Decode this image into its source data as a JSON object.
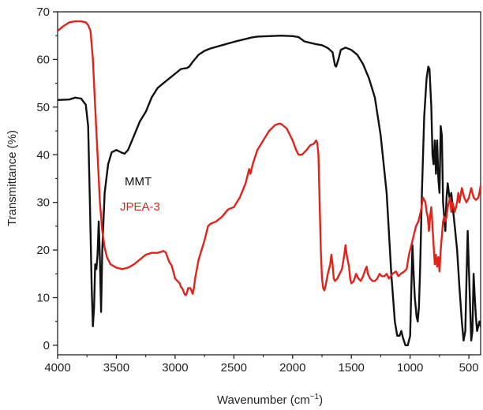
{
  "chart_data": {
    "type": "line",
    "xlabel": "Wavenumber (cm",
    "xlabel_sup": "−1",
    "xlabel_close": ")",
    "ylabel": "Transmittance (%)",
    "xlim": [
      4000,
      400
    ],
    "ylim": [
      -2,
      70
    ],
    "x_reversed": true,
    "x_ticks": [
      {
        "value": 4000,
        "label": "4000"
      },
      {
        "value": 3500,
        "label": "3500"
      },
      {
        "value": 3000,
        "label": "3000"
      },
      {
        "value": 2500,
        "label": "2500"
      },
      {
        "value": 2000,
        "label": "2000"
      },
      {
        "value": 1500,
        "label": "1500"
      },
      {
        "value": 1000,
        "label": "1000"
      },
      {
        "value": 500,
        "label": "500"
      }
    ],
    "y_ticks": [
      {
        "value": 0,
        "label": "0"
      },
      {
        "value": 10,
        "label": "10"
      },
      {
        "value": 20,
        "label": "20"
      },
      {
        "value": 30,
        "label": "30"
      },
      {
        "value": 40,
        "label": "40"
      },
      {
        "value": 50,
        "label": "50"
      },
      {
        "value": 60,
        "label": "60"
      },
      {
        "value": 70,
        "label": "70"
      }
    ],
    "grid": false,
    "legend_placement": "middle-left",
    "series": [
      {
        "name": "MMT",
        "color": "#111111",
        "points": [
          [
            4000,
            51.5
          ],
          [
            3900,
            51.6
          ],
          [
            3850,
            52
          ],
          [
            3800,
            51.8
          ],
          [
            3760,
            50.5
          ],
          [
            3740,
            46
          ],
          [
            3725,
            30
          ],
          [
            3710,
            12
          ],
          [
            3700,
            4
          ],
          [
            3690,
            8
          ],
          [
            3680,
            17
          ],
          [
            3670,
            16
          ],
          [
            3660,
            19
          ],
          [
            3650,
            26
          ],
          [
            3640,
            18
          ],
          [
            3630,
            7
          ],
          [
            3620,
            20
          ],
          [
            3600,
            32
          ],
          [
            3570,
            38
          ],
          [
            3540,
            40.5
          ],
          [
            3500,
            41
          ],
          [
            3460,
            40.5
          ],
          [
            3430,
            40.2
          ],
          [
            3400,
            41
          ],
          [
            3350,
            44
          ],
          [
            3300,
            47
          ],
          [
            3250,
            49
          ],
          [
            3200,
            52
          ],
          [
            3150,
            54
          ],
          [
            3100,
            55
          ],
          [
            3050,
            56
          ],
          [
            3000,
            57
          ],
          [
            2950,
            58
          ],
          [
            2900,
            58.2
          ],
          [
            2880,
            58.5
          ],
          [
            2850,
            59.5
          ],
          [
            2800,
            61
          ],
          [
            2750,
            61.8
          ],
          [
            2700,
            62.3
          ],
          [
            2600,
            63
          ],
          [
            2500,
            63.7
          ],
          [
            2400,
            64.3
          ],
          [
            2350,
            64.6
          ],
          [
            2300,
            64.8
          ],
          [
            2200,
            64.9
          ],
          [
            2100,
            65
          ],
          [
            2000,
            64.9
          ],
          [
            1950,
            64.7
          ],
          [
            1900,
            63.8
          ],
          [
            1850,
            63.5
          ],
          [
            1800,
            63.2
          ],
          [
            1750,
            63
          ],
          [
            1700,
            62.4
          ],
          [
            1660,
            61.5
          ],
          [
            1640,
            58.8
          ],
          [
            1630,
            58.5
          ],
          [
            1610,
            60
          ],
          [
            1590,
            62
          ],
          [
            1550,
            62.5
          ],
          [
            1500,
            62
          ],
          [
            1450,
            61
          ],
          [
            1400,
            59
          ],
          [
            1350,
            56
          ],
          [
            1300,
            52
          ],
          [
            1250,
            44
          ],
          [
            1200,
            32
          ],
          [
            1160,
            15
          ],
          [
            1130,
            5
          ],
          [
            1110,
            2
          ],
          [
            1090,
            2
          ],
          [
            1075,
            3
          ],
          [
            1060,
            1.5
          ],
          [
            1040,
            0
          ],
          [
            1020,
            0
          ],
          [
            1000,
            2
          ],
          [
            990,
            12
          ],
          [
            980,
            21
          ],
          [
            970,
            15
          ],
          [
            960,
            10
          ],
          [
            945,
            6
          ],
          [
            935,
            5
          ],
          [
            925,
            8
          ],
          [
            915,
            16
          ],
          [
            900,
            32
          ],
          [
            880,
            48
          ],
          [
            860,
            56
          ],
          [
            845,
            58.5
          ],
          [
            835,
            58
          ],
          [
            820,
            50
          ],
          [
            810,
            40
          ],
          [
            800,
            38
          ],
          [
            790,
            43
          ],
          [
            780,
            36
          ],
          [
            770,
            43
          ],
          [
            760,
            35
          ],
          [
            750,
            32
          ],
          [
            740,
            46
          ],
          [
            730,
            44
          ],
          [
            720,
            30
          ],
          [
            700,
            24
          ],
          [
            690,
            31
          ],
          [
            680,
            34
          ],
          [
            670,
            32
          ],
          [
            660,
            30
          ],
          [
            650,
            32
          ],
          [
            620,
            25
          ],
          [
            600,
            20
          ],
          [
            580,
            12
          ],
          [
            560,
            5
          ],
          [
            545,
            1
          ],
          [
            530,
            3
          ],
          [
            520,
            14
          ],
          [
            510,
            24
          ],
          [
            495,
            12
          ],
          [
            480,
            1
          ],
          [
            470,
            3
          ],
          [
            460,
            15
          ],
          [
            450,
            10
          ],
          [
            440,
            6
          ],
          [
            430,
            3
          ],
          [
            410,
            5
          ],
          [
            400,
            4
          ]
        ]
      },
      {
        "name": "JPEA-3",
        "color": "#e2231a",
        "points": [
          [
            4000,
            66
          ],
          [
            3950,
            67
          ],
          [
            3900,
            67.8
          ],
          [
            3850,
            68
          ],
          [
            3800,
            68
          ],
          [
            3760,
            67.8
          ],
          [
            3740,
            67.2
          ],
          [
            3720,
            66
          ],
          [
            3700,
            60
          ],
          [
            3680,
            50
          ],
          [
            3660,
            40
          ],
          [
            3640,
            30
          ],
          [
            3620,
            24
          ],
          [
            3600,
            20.5
          ],
          [
            3580,
            18.5
          ],
          [
            3550,
            17
          ],
          [
            3500,
            16.3
          ],
          [
            3450,
            16
          ],
          [
            3400,
            16.3
          ],
          [
            3350,
            17
          ],
          [
            3300,
            18
          ],
          [
            3250,
            19
          ],
          [
            3200,
            19.4
          ],
          [
            3150,
            19.4
          ],
          [
            3120,
            19.6
          ],
          [
            3100,
            19.8
          ],
          [
            3080,
            19.5
          ],
          [
            3050,
            17.5
          ],
          [
            3030,
            16.8
          ],
          [
            3010,
            15
          ],
          [
            3000,
            14
          ],
          [
            2980,
            13.5
          ],
          [
            2960,
            13
          ],
          [
            2950,
            12.2
          ],
          [
            2940,
            12
          ],
          [
            2920,
            10.8
          ],
          [
            2910,
            10.5
          ],
          [
            2900,
            11
          ],
          [
            2890,
            12
          ],
          [
            2870,
            12
          ],
          [
            2850,
            10.8
          ],
          [
            2840,
            12
          ],
          [
            2830,
            14
          ],
          [
            2800,
            18
          ],
          [
            2750,
            22
          ],
          [
            2720,
            25
          ],
          [
            2700,
            25.5
          ],
          [
            2650,
            26
          ],
          [
            2600,
            27
          ],
          [
            2550,
            28.5
          ],
          [
            2500,
            29
          ],
          [
            2450,
            31
          ],
          [
            2400,
            34
          ],
          [
            2380,
            36
          ],
          [
            2370,
            37
          ],
          [
            2360,
            36
          ],
          [
            2340,
            38
          ],
          [
            2300,
            41
          ],
          [
            2250,
            43
          ],
          [
            2200,
            45
          ],
          [
            2150,
            46.2
          ],
          [
            2120,
            46.5
          ],
          [
            2100,
            46.5
          ],
          [
            2050,
            45.5
          ],
          [
            2000,
            43
          ],
          [
            1970,
            41
          ],
          [
            1950,
            40
          ],
          [
            1920,
            40
          ],
          [
            1880,
            41
          ],
          [
            1850,
            42
          ],
          [
            1820,
            42.3
          ],
          [
            1800,
            43
          ],
          [
            1790,
            42.5
          ],
          [
            1780,
            40
          ],
          [
            1770,
            30
          ],
          [
            1760,
            20
          ],
          [
            1750,
            14
          ],
          [
            1740,
            12
          ],
          [
            1730,
            11.5
          ],
          [
            1720,
            12.5
          ],
          [
            1700,
            15
          ],
          [
            1680,
            17
          ],
          [
            1670,
            19
          ],
          [
            1660,
            17
          ],
          [
            1650,
            14
          ],
          [
            1640,
            13.5
          ],
          [
            1620,
            14
          ],
          [
            1600,
            15
          ],
          [
            1580,
            16
          ],
          [
            1560,
            19
          ],
          [
            1550,
            21
          ],
          [
            1540,
            19
          ],
          [
            1520,
            16.5
          ],
          [
            1510,
            14
          ],
          [
            1500,
            13
          ],
          [
            1480,
            13.5
          ],
          [
            1460,
            15
          ],
          [
            1440,
            14
          ],
          [
            1420,
            13.5
          ],
          [
            1400,
            14.5
          ],
          [
            1380,
            16
          ],
          [
            1370,
            16.5
          ],
          [
            1360,
            15
          ],
          [
            1340,
            14
          ],
          [
            1320,
            13.5
          ],
          [
            1300,
            13.5
          ],
          [
            1280,
            14
          ],
          [
            1260,
            15
          ],
          [
            1240,
            14.5
          ],
          [
            1220,
            14.5
          ],
          [
            1200,
            15
          ],
          [
            1180,
            14
          ],
          [
            1150,
            15
          ],
          [
            1120,
            15.5
          ],
          [
            1100,
            14.5
          ],
          [
            1080,
            15
          ],
          [
            1050,
            15.5
          ],
          [
            1030,
            16
          ],
          [
            1010,
            19
          ],
          [
            1000,
            20
          ],
          [
            990,
            21
          ],
          [
            970,
            23
          ],
          [
            950,
            25
          ],
          [
            930,
            26
          ],
          [
            910,
            28
          ],
          [
            900,
            29.5
          ],
          [
            890,
            31
          ],
          [
            880,
            30.5
          ],
          [
            870,
            30
          ],
          [
            860,
            28
          ],
          [
            850,
            27
          ],
          [
            840,
            24
          ],
          [
            830,
            27
          ],
          [
            820,
            29
          ],
          [
            810,
            25
          ],
          [
            800,
            21
          ],
          [
            790,
            17
          ],
          [
            780,
            19
          ],
          [
            770,
            16.5
          ],
          [
            760,
            18.5
          ],
          [
            750,
            15.5
          ],
          [
            740,
            20
          ],
          [
            720,
            26
          ],
          [
            710,
            27
          ],
          [
            700,
            26
          ],
          [
            690,
            27
          ],
          [
            680,
            29
          ],
          [
            670,
            30
          ],
          [
            660,
            31
          ],
          [
            650,
            28
          ],
          [
            640,
            30
          ],
          [
            630,
            29
          ],
          [
            620,
            28
          ],
          [
            600,
            30
          ],
          [
            590,
            32
          ],
          [
            580,
            30
          ],
          [
            560,
            33
          ],
          [
            540,
            31
          ],
          [
            520,
            30
          ],
          [
            500,
            31
          ],
          [
            480,
            33
          ],
          [
            460,
            31
          ],
          [
            440,
            30.5
          ],
          [
            420,
            31
          ],
          [
            410,
            32
          ],
          [
            400,
            33.5
          ]
        ]
      }
    ]
  }
}
